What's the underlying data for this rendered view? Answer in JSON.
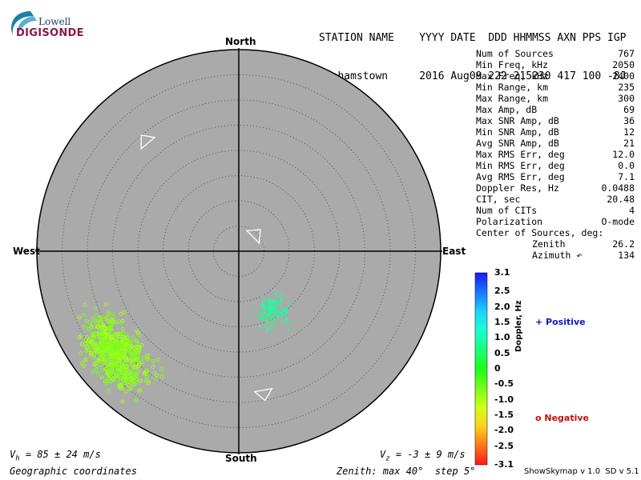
{
  "logo": {
    "top": "Lowell",
    "bottom": "DIGISONDE"
  },
  "header": {
    "line1": "STATION NAME    YYYY DATE  DDD HHMMSS AXN PPS IGP",
    "line2": "Grahamstown     2016 Aug09 222 215230 417 100 -8J"
  },
  "stats": [
    {
      "label": "Num of Sources",
      "value": "767"
    },
    {
      "label": "Min Freq, kHz",
      "value": "2050"
    },
    {
      "label": "Max Freq, kHz",
      "value": "2400"
    },
    {
      "label": "Min Range, km",
      "value": "235"
    },
    {
      "label": "Max Range, km",
      "value": "300"
    },
    {
      "label": "Max Amp, dB",
      "value": "69"
    },
    {
      "label": "Max SNR Amp, dB",
      "value": "36"
    },
    {
      "label": "Min SNR Amp, dB",
      "value": "12"
    },
    {
      "label": "Avg SNR Amp, dB",
      "value": "21"
    },
    {
      "label": "Max RMS Err, deg",
      "value": "12.0"
    },
    {
      "label": "Min RMS Err, deg",
      "value": "0.0"
    },
    {
      "label": "Avg RMS Err, deg",
      "value": "7.1"
    },
    {
      "label": "Doppler Res, Hz",
      "value": "0.0488"
    },
    {
      "label": "CIT, sec",
      "value": "20.48"
    },
    {
      "label": "Num of CITs",
      "value": "4"
    },
    {
      "label": "Polarization",
      "value": "O-mode"
    },
    {
      "label": "Center of Sources, deg:",
      "value": ""
    },
    {
      "label": "Zenith",
      "value": "26.2"
    },
    {
      "label": "Azimuth ↶",
      "value": "134"
    }
  ],
  "compass": {
    "north": "North",
    "south": "South",
    "east": "East",
    "west": "West"
  },
  "footer": {
    "vh": "V",
    "vh_sub": "h",
    "vh_text": " = 85 ± 24 m/s",
    "vz": "V",
    "vz_sub": "z",
    "vz_text": " = -3 ± 9 m/s",
    "coords": "Geographic coordinates",
    "zenith": "Zenith: max 40°  step 5°",
    "version": "ShowSkymap v 1.0  SD v 5.1"
  },
  "colorbar": {
    "label": "Doppler, Hz",
    "ticks": [
      "3.1",
      "2.5",
      "2.0",
      "1.5",
      "1.0",
      "0.5",
      "0",
      "-0.5",
      "-1.0",
      "-1.5",
      "-2.0",
      "-2.5",
      "-3.1"
    ]
  },
  "legend": {
    "positive": "+ Positive",
    "negative": "o Negative"
  },
  "colors": {
    "disc": "#aaaaaa",
    "positive_marker": "#66ffaa",
    "negative_marker": "#eeff22"
  },
  "chart_data": {
    "type": "scatter",
    "coordinates": "polar-sky-map",
    "zenith_max_deg": 40,
    "zenith_step_deg": 5,
    "series": [
      {
        "name": "Positive",
        "marker": "+",
        "doppler_range_hz": [
          0.5,
          1.5
        ],
        "centroid": {
          "zenith_deg": 14,
          "azimuth_deg": 150
        },
        "count_estimate": 120
      },
      {
        "name": "Negative",
        "marker": "o",
        "doppler_range_hz": [
          -1.5,
          -0.5
        ],
        "centroid": {
          "zenith_deg": 32,
          "azimuth_deg": 230
        },
        "count_estimate": 647
      }
    ],
    "direction_markers_azimuth_deg": [
      45,
      170,
      320
    ]
  }
}
